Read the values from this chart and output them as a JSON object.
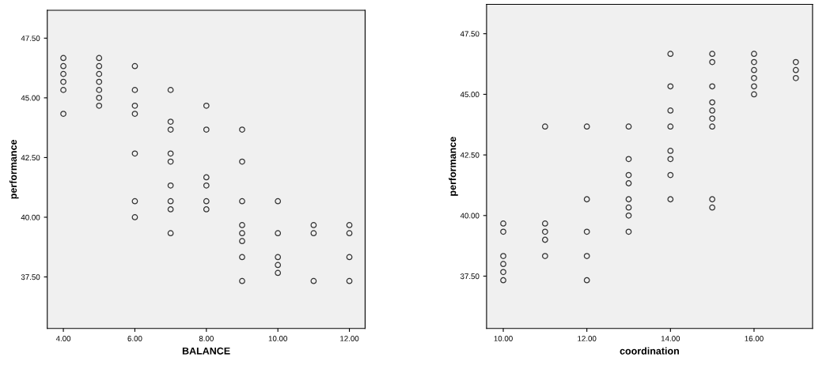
{
  "chart_data": [
    {
      "type": "scatter",
      "xlabel": "BALANCE",
      "ylabel": "performance",
      "marker": "circle",
      "grid": false,
      "xlim": [
        3.55,
        12.44
      ],
      "ylim": [
        35.34,
        48.67
      ],
      "xticks": [
        {
          "value": 4,
          "label": "4.00"
        },
        {
          "value": 6,
          "label": "6.00"
        },
        {
          "value": 8,
          "label": "8.00"
        },
        {
          "value": 10,
          "label": "10.00"
        },
        {
          "value": 12,
          "label": "12.00"
        }
      ],
      "yticks": [
        {
          "value": 37.5,
          "label": "37.50"
        },
        {
          "value": 40,
          "label": "40.00"
        },
        {
          "value": 42.5,
          "label": "42.50"
        },
        {
          "value": 45,
          "label": "45.00"
        },
        {
          "value": 47.5,
          "label": "47.50"
        }
      ],
      "series": [
        {
          "color": "#333333",
          "x": [
            4,
            4,
            4,
            4,
            4,
            4,
            5,
            5,
            5,
            5,
            5,
            5,
            5,
            6,
            6,
            6,
            6,
            6,
            6,
            6,
            7,
            7,
            7,
            7,
            7,
            7,
            7,
            7,
            7,
            8,
            8,
            8,
            8,
            8,
            8,
            9,
            9,
            9,
            9,
            9,
            9,
            9,
            9,
            10,
            10,
            10,
            10,
            10,
            11,
            11,
            11,
            12,
            12,
            12,
            12
          ],
          "values": [
            46.67,
            46.33,
            46,
            45.67,
            45.33,
            44.33,
            46.67,
            46.33,
            46,
            45.67,
            45.33,
            45,
            44.67,
            46.33,
            45.33,
            44.67,
            44.33,
            42.67,
            40.67,
            40,
            45.33,
            44,
            43.67,
            42.67,
            42.33,
            41.33,
            40.67,
            40.33,
            39.33,
            44.67,
            43.67,
            41.67,
            41.33,
            40.67,
            40.33,
            43.67,
            42.33,
            40.67,
            39.67,
            39.33,
            39,
            38.33,
            37.33,
            40.67,
            39.33,
            38.33,
            38,
            37.67,
            39.67,
            39.33,
            37.33,
            39.67,
            39.33,
            38.33,
            37.33
          ]
        }
      ]
    },
    {
      "type": "scatter",
      "xlabel": "coordination",
      "ylabel": "performance",
      "marker": "circle",
      "grid": false,
      "xlim": [
        9.6,
        17.4
      ],
      "ylim": [
        35.34,
        48.71
      ],
      "xticks": [
        {
          "value": 10,
          "label": "10.00"
        },
        {
          "value": 12,
          "label": "12.00"
        },
        {
          "value": 14,
          "label": "14.00"
        },
        {
          "value": 16,
          "label": "16.00"
        }
      ],
      "yticks": [
        {
          "value": 37.5,
          "label": "37.50"
        },
        {
          "value": 40,
          "label": "40.00"
        },
        {
          "value": 42.5,
          "label": "42.50"
        },
        {
          "value": 45,
          "label": "45.00"
        },
        {
          "value": 47.5,
          "label": "47.50"
        }
      ],
      "series": [
        {
          "color": "#333333",
          "x": [
            10,
            10,
            10,
            10,
            10,
            10,
            11,
            11,
            11,
            11,
            11,
            12,
            12,
            12,
            12,
            12,
            13,
            13,
            13,
            13,
            13,
            13,
            13,
            13,
            14,
            14,
            14,
            14,
            14,
            14,
            14,
            14,
            15,
            15,
            15,
            15,
            15,
            15,
            15,
            15,
            15,
            16,
            16,
            16,
            16,
            16,
            16,
            17,
            17,
            17
          ],
          "values": [
            39.67,
            39.33,
            38.33,
            38,
            37.67,
            37.33,
            43.67,
            39.67,
            39.33,
            39,
            38.33,
            43.67,
            40.67,
            39.33,
            38.33,
            37.33,
            43.67,
            42.33,
            41.67,
            41.33,
            40.67,
            40.33,
            40,
            39.33,
            46.67,
            45.33,
            44.33,
            43.67,
            42.67,
            42.33,
            41.67,
            40.67,
            46.67,
            46.33,
            45.33,
            44.67,
            44.33,
            44,
            43.67,
            40.67,
            40.33,
            46.67,
            46.33,
            46,
            45.67,
            45.33,
            45,
            46.33,
            46,
            45.67
          ]
        }
      ]
    }
  ]
}
